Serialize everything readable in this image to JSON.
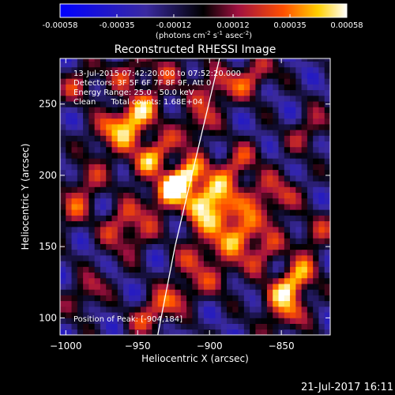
{
  "chart_data": [
    {
      "type": "colorbar",
      "tick_labels": [
        "-0.00058",
        "-0.00035",
        "-0.00012",
        "0.00012",
        "0.00035",
        "0.00058"
      ],
      "range": [
        -0.00058,
        0.00058
      ],
      "unit_label_parts": {
        "a": "(photons cm",
        "a_sup": "-2",
        "b": " s",
        "b_sup": "-1",
        "c": " asec",
        "c_sup": "-2",
        "d": ")"
      }
    },
    {
      "type": "heatmap",
      "title": "Reconstructed RHESSI Image",
      "xlabel": "Heliocentric X (arcsec)",
      "ylabel": "Heliocentric Y (arcsec)",
      "xlim": [
        -1004,
        -816
      ],
      "ylim": [
        88,
        282
      ],
      "x_ticks": [
        -1000,
        -950,
        -900,
        -850
      ],
      "y_ticks": [
        100,
        150,
        200,
        250
      ],
      "annotations": [
        "13-Jul-2015 07:42:20.000 to 07:52:20.000",
        "Detectors: 3F 5F 6F 7F 8F 9F, Att 0",
        "Energy Range: 25.0 - 50.0 keV",
        "Clean      Total counts: 1.68E+04"
      ],
      "peak_label": "Position of Peak: [-904,184]",
      "peak": {
        "x": -904,
        "y": 184
      },
      "limb": [
        [
          -936,
          88
        ],
        [
          -924,
          150
        ],
        [
          -910,
          210
        ],
        [
          -893,
          282
        ]
      ],
      "sources": [
        {
          "x": -904,
          "y": 184,
          "amp": 1.0
        },
        {
          "x": -918,
          "y": 198,
          "amp": 0.9
        },
        {
          "x": -893,
          "y": 171,
          "amp": 0.85
        },
        {
          "x": -878,
          "y": 158,
          "amp": 0.8
        },
        {
          "x": -863,
          "y": 146,
          "amp": 0.55
        },
        {
          "x": -940,
          "y": 213,
          "amp": 0.8
        },
        {
          "x": -928,
          "y": 190,
          "amp": 0.6
        },
        {
          "x": -955,
          "y": 228,
          "amp": 0.55
        },
        {
          "x": -970,
          "y": 235,
          "amp": 0.55
        },
        {
          "x": -948,
          "y": 245,
          "amp": 0.65
        },
        {
          "x": -908,
          "y": 236,
          "amp": 0.5
        },
        {
          "x": -897,
          "y": 262,
          "amp": 0.55
        },
        {
          "x": -870,
          "y": 268,
          "amp": 0.6
        },
        {
          "x": -882,
          "y": 208,
          "amp": 0.55
        },
        {
          "x": -868,
          "y": 190,
          "amp": 0.45
        },
        {
          "x": -850,
          "y": 183,
          "amp": 0.5
        },
        {
          "x": -838,
          "y": 130,
          "amp": 0.55
        },
        {
          "x": -850,
          "y": 118,
          "amp": 0.6
        },
        {
          "x": -843,
          "y": 103,
          "amp": 0.55
        },
        {
          "x": -962,
          "y": 168,
          "amp": 0.55
        },
        {
          "x": -950,
          "y": 157,
          "amp": 0.45
        },
        {
          "x": -995,
          "y": 176,
          "amp": 0.45
        },
        {
          "x": -985,
          "y": 197,
          "amp": 0.4
        },
        {
          "x": -910,
          "y": 143,
          "amp": 0.5
        },
        {
          "x": -895,
          "y": 128,
          "amp": 0.4
        },
        {
          "x": -940,
          "y": 103,
          "amp": 0.55
        },
        {
          "x": -923,
          "y": 115,
          "amp": 0.4
        },
        {
          "x": -985,
          "y": 118,
          "amp": 0.45
        },
        {
          "x": -990,
          "y": 265,
          "amp": 0.45
        },
        {
          "x": -955,
          "y": 272,
          "amp": 0.5
        },
        {
          "x": -925,
          "y": 272,
          "amp": 0.4
        },
        {
          "x": -830,
          "y": 232,
          "amp": 0.45
        },
        {
          "x": -826,
          "y": 160,
          "amp": 0.4
        }
      ]
    }
  ],
  "footer": {
    "timestamp": "21-Jul-2017 16:11"
  }
}
